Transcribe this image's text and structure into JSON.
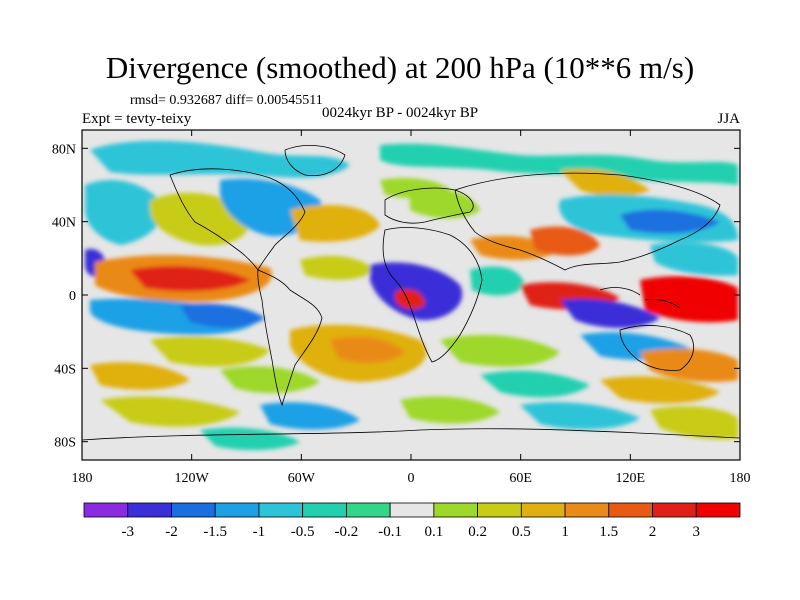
{
  "title": "Divergence (smoothed) at 200 hPa (10**6 m/s)",
  "stats": "rmsd= 0.932687 diff= 0.00545511",
  "left_subtitle": "Expt = tevty-teixy",
  "center_subtitle": "0024kyr BP - 0024kyr BP",
  "right_subtitle": "JJA",
  "lon_ticks": [
    "180",
    "120W",
    "60W",
    "0",
    "60E",
    "120E",
    "180"
  ],
  "lat_ticks": [
    "80N",
    "40N",
    "0",
    "40S",
    "80S"
  ],
  "colorbar": {
    "labels": [
      "-3",
      "-2",
      "-1.5",
      "-1",
      "-0.5",
      "-0.2",
      "-0.1",
      "0.1",
      "0.2",
      "0.5",
      "1",
      "1.5",
      "2",
      "3"
    ],
    "colors": [
      "#8a2be2",
      "#3b2fd8",
      "#1a6fe0",
      "#1ea0e6",
      "#2ec4d8",
      "#22d0b0",
      "#33d58a",
      "#e6e6e6",
      "#9ed82a",
      "#c8cc14",
      "#e0b010",
      "#ea8a18",
      "#e85a14",
      "#e02018",
      "#f00000"
    ]
  },
  "map_colors": {
    "background": "#e6e6e6",
    "land_outline": "#000000"
  }
}
